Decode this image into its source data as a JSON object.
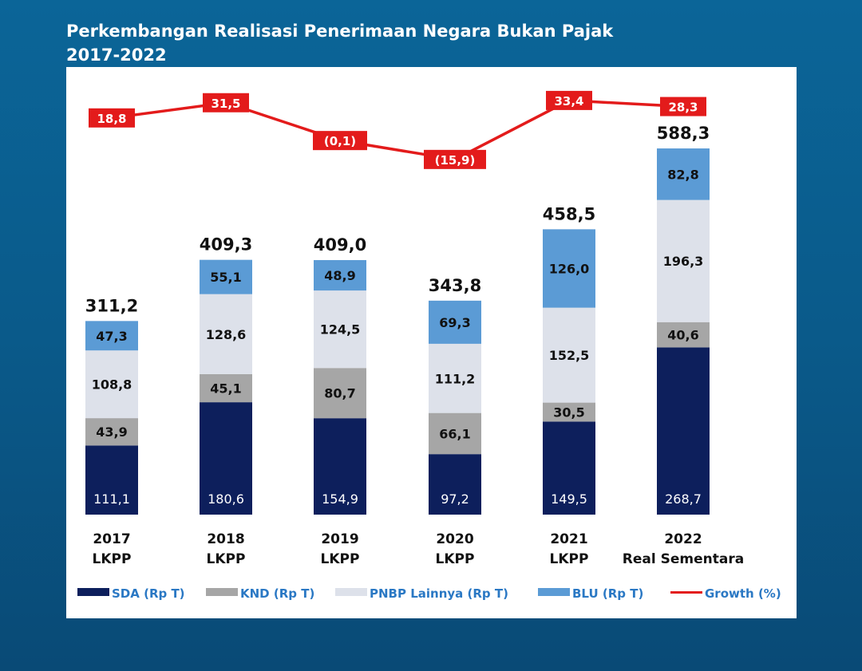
{
  "title_line1": "Perkembangan Realisasi Penerimaan Negara Bukan Pajak",
  "title_line2": "2017-2022",
  "chart_data": {
    "type": "bar",
    "stacked": true,
    "categories": [
      [
        "2017",
        "LKPP"
      ],
      [
        "2018",
        "LKPP"
      ],
      [
        "2019",
        "LKPP"
      ],
      [
        "2020",
        "LKPP"
      ],
      [
        "2021",
        "LKPP"
      ],
      [
        "2022",
        "Real Sementara"
      ]
    ],
    "series": [
      {
        "name": "SDA (Rp T)",
        "color": "#0d1f5c",
        "values": [
          111.1,
          180.6,
          154.9,
          97.2,
          149.5,
          268.7
        ],
        "labels": [
          "111,1",
          "180,6",
          "154,9",
          "97,2",
          "149,5",
          "268,7"
        ]
      },
      {
        "name": "KND (Rp T)",
        "color": "#a6a6a6",
        "values": [
          43.9,
          45.1,
          80.7,
          66.1,
          30.5,
          40.6
        ],
        "labels": [
          "43,9",
          "45,1",
          "80,7",
          "66,1",
          "30,5",
          "40,6"
        ]
      },
      {
        "name": "PNBP Lainnya (Rp T)",
        "color": "#dde1ea",
        "values": [
          108.8,
          128.6,
          124.5,
          111.2,
          152.5,
          196.3
        ],
        "labels": [
          "108,8",
          "128,6",
          "124,5",
          "111,2",
          "152,5",
          "196,3"
        ]
      },
      {
        "name": "BLU (Rp T)",
        "color": "#5b9bd5",
        "values": [
          47.3,
          55.1,
          48.9,
          69.3,
          126.0,
          82.8
        ],
        "labels": [
          "47,3",
          "55,1",
          "48,9",
          "69,3",
          "126,0",
          "82,8"
        ]
      }
    ],
    "totals": [
      311.2,
      409.3,
      409.0,
      343.8,
      458.5,
      588.3
    ],
    "total_labels": [
      "311,2",
      "409,3",
      "409,0",
      "343,8",
      "458,5",
      "588,3"
    ],
    "growth": {
      "name": "Growth (%)",
      "color": "#e31b1b",
      "values": [
        18.8,
        31.5,
        -0.1,
        -15.9,
        33.4,
        28.3
      ],
      "labels": [
        "18,8",
        "31,5",
        "(0,1)",
        "(15,9)",
        "33,4",
        "28,3"
      ]
    },
    "legend": "bottom",
    "grid": false
  }
}
